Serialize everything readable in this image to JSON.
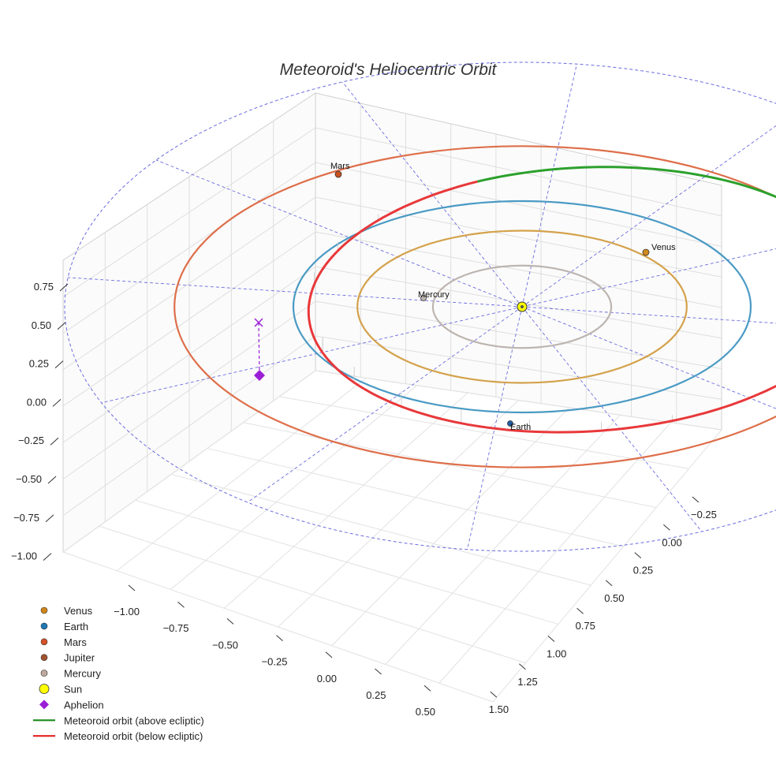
{
  "chart_data": {
    "type": "scatter3d",
    "title": "Meteoroid's Heliocentric Orbit",
    "axes": {
      "x_ticks": [
        "−1.00",
        "−0.75",
        "−0.50",
        "−0.25",
        "0.00",
        "0.25",
        "0.50"
      ],
      "y_ticks": [
        "−0.25",
        "0.00",
        "0.25",
        "0.50",
        "0.75",
        "1.00",
        "1.25",
        "1.50"
      ],
      "z_ticks": [
        "0.75",
        "0.50",
        "0.25",
        "0.00",
        "−0.25",
        "−0.50",
        "−0.75",
        "−1.00"
      ],
      "z_range": [
        -1.0,
        0.75
      ]
    },
    "orbits": [
      {
        "name": "Mercury",
        "radius_au": 0.39,
        "color": "#bdb5b0"
      },
      {
        "name": "Venus",
        "radius_au": 0.72,
        "color": "#d4a24c"
      },
      {
        "name": "Earth",
        "radius_au": 1.0,
        "color": "#4a9ac4"
      },
      {
        "name": "Mars",
        "radius_au": 1.52,
        "color": "#de6f4a"
      }
    ],
    "planet_labels": [
      {
        "name": "Mars",
        "color": "#c8511e"
      },
      {
        "name": "Venus",
        "color": "#d18a1a"
      },
      {
        "name": "Mercury",
        "color": "#bdb5b0"
      },
      {
        "name": "Earth",
        "color": "#1f5fa8"
      }
    ],
    "meteoroid_orbit": {
      "perihelion_au": 0.95,
      "aphelion_au": 1.55,
      "aphelion_height_au": 0.52,
      "above_color": "#2ca02c",
      "below_color": "#e8383a"
    },
    "legend": [
      {
        "label": "Venus",
        "marker": "circle",
        "color": "#d0851a"
      },
      {
        "label": "Earth",
        "marker": "circle",
        "color": "#1f77b4"
      },
      {
        "label": "Mars",
        "marker": "circle",
        "color": "#d4502a"
      },
      {
        "label": "Jupiter",
        "marker": "circle",
        "color": "#a0522d"
      },
      {
        "label": "Mercury",
        "marker": "circle",
        "color": "#c0aaa0"
      },
      {
        "label": "Sun",
        "marker": "circle-large",
        "color": "#ffff00"
      },
      {
        "label": "Aphelion",
        "marker": "diamond",
        "color": "#9b1fd6"
      },
      {
        "label": "Meteoroid orbit (above ecliptic)",
        "marker": "line",
        "color": "#1a8a1a"
      },
      {
        "label": "Meteoroid orbit (below ecliptic)",
        "marker": "line",
        "color": "#e82020"
      }
    ]
  }
}
